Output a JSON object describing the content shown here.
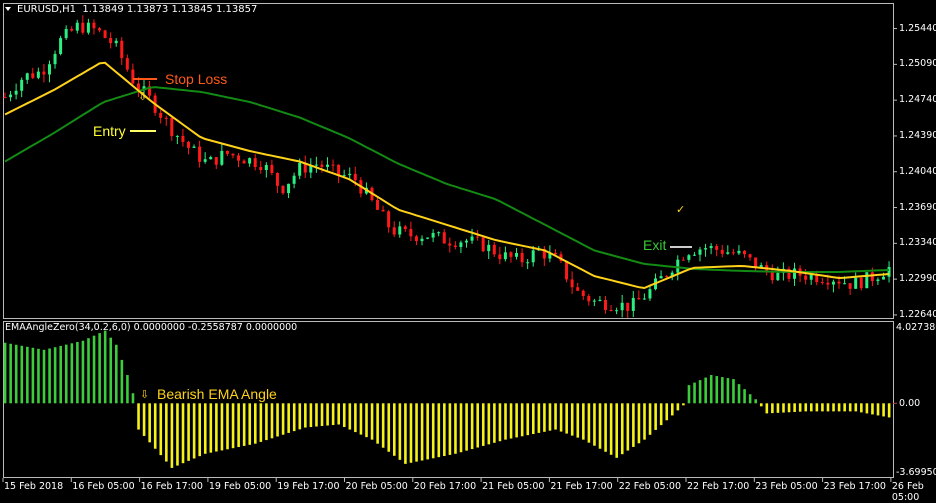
{
  "header": {
    "symbol": "EURUSD,H1",
    "ohlc": "1.13849 1.13873 1.13845 1.13857"
  },
  "indicator": {
    "label": "EMAAngleZero(34,0.2,6,0) 0.0000000 -0.2558787 0.0000000",
    "max_label": "4.0273807",
    "zero_label": "0.00",
    "min_label": "-3.699504"
  },
  "annotations": {
    "stop_loss": "Stop Loss",
    "entry": "Entry",
    "exit": "Exit",
    "bearish": "Bearish EMA Angle",
    "down_arrow": "⇩",
    "check": "✓"
  },
  "colors": {
    "bull": "#2bef82",
    "bear": "#ff1a1a",
    "fast_ema": "#ffd21a",
    "slow_ema": "#138a13",
    "hist_pos": "#3ccc3c",
    "hist_neg": "#f5f21a",
    "stop_loss": "#ff5a1a",
    "entry": "#ffff33",
    "exit": "#33cc33"
  },
  "chart_data": {
    "type": "candlestick",
    "price_axis_ticks": [
      "1.25440",
      "1.25090",
      "1.24740",
      "1.24390",
      "1.24040",
      "1.23690",
      "1.23340",
      "1.22990",
      "1.22640"
    ],
    "price_range": [
      1.2261,
      1.2568
    ],
    "time_axis_ticks": [
      "15 Feb 2018",
      "16 Feb 05:00",
      "16 Feb 17:00",
      "19 Feb 05:00",
      "19 Feb 17:00",
      "20 Feb 05:00",
      "20 Feb 17:00",
      "21 Feb 05:00",
      "21 Feb 17:00",
      "22 Feb 05:00",
      "22 Feb 17:00",
      "23 Feb 05:00",
      "23 Feb 17:00",
      "26 Feb 05:00"
    ],
    "bar_count": 160,
    "close_path": [
      1.2477,
      1.2497,
      1.2502,
      1.2532,
      1.2547,
      1.2542,
      1.2527,
      1.2492,
      1.2472,
      1.2447,
      1.2427,
      1.2412,
      1.2422,
      1.2417,
      1.2412,
      1.2387,
      1.2407,
      1.2412,
      1.2402,
      1.2397,
      1.2372,
      1.2347,
      1.2342,
      1.2342,
      1.2337,
      1.2337,
      1.2332,
      1.2322,
      1.2317,
      1.2327,
      1.2317,
      1.2287,
      1.2277,
      1.2275,
      1.2272,
      1.2287,
      1.2307,
      1.2327,
      1.233,
      1.2327,
      1.2322,
      1.231,
      1.2302,
      1.2304,
      1.2302,
      1.23,
      1.2294,
      1.23,
      1.231
    ],
    "fast_ema_path": [
      1.246,
      1.2484,
      1.2512,
      1.2472,
      1.2437,
      1.2424,
      1.2414,
      1.2397,
      1.2367,
      1.2352,
      1.2337,
      1.2327,
      1.2302,
      1.229,
      1.231,
      1.2312,
      1.2307,
      1.23,
      1.2304
    ],
    "slow_ema_path": [
      1.2414,
      1.2442,
      1.2472,
      1.2487,
      1.2482,
      1.2472,
      1.2457,
      1.2437,
      1.2412,
      1.2392,
      1.2377,
      1.2352,
      1.2327,
      1.2314,
      1.2309,
      1.2307,
      1.2306,
      1.2306,
      1.2308
    ],
    "indicator_range": [
      -3.699504,
      4.0273807
    ],
    "histogram_keypoints": [
      [
        0,
        3.0
      ],
      [
        7,
        2.65
      ],
      [
        14,
        3.1
      ],
      [
        18,
        3.6
      ],
      [
        20,
        2.9
      ],
      [
        22,
        1.4
      ],
      [
        23,
        0.5
      ],
      [
        24,
        -1.3
      ],
      [
        30,
        -3.2
      ],
      [
        36,
        -2.5
      ],
      [
        45,
        -2.0
      ],
      [
        54,
        -1.2
      ],
      [
        60,
        -1.05
      ],
      [
        66,
        -1.8
      ],
      [
        72,
        -3.0
      ],
      [
        81,
        -2.5
      ],
      [
        90,
        -1.8
      ],
      [
        99,
        -1.3
      ],
      [
        104,
        -1.8
      ],
      [
        110,
        -2.7
      ],
      [
        115,
        -1.8
      ],
      [
        120,
        -0.6
      ],
      [
        122,
        -0.1
      ],
      [
        123,
        0.9
      ],
      [
        127,
        1.4
      ],
      [
        131,
        1.2
      ],
      [
        135,
        0.2
      ],
      [
        137,
        -0.5
      ],
      [
        144,
        -0.4
      ],
      [
        153,
        -0.4
      ],
      [
        159,
        -0.7
      ]
    ]
  }
}
